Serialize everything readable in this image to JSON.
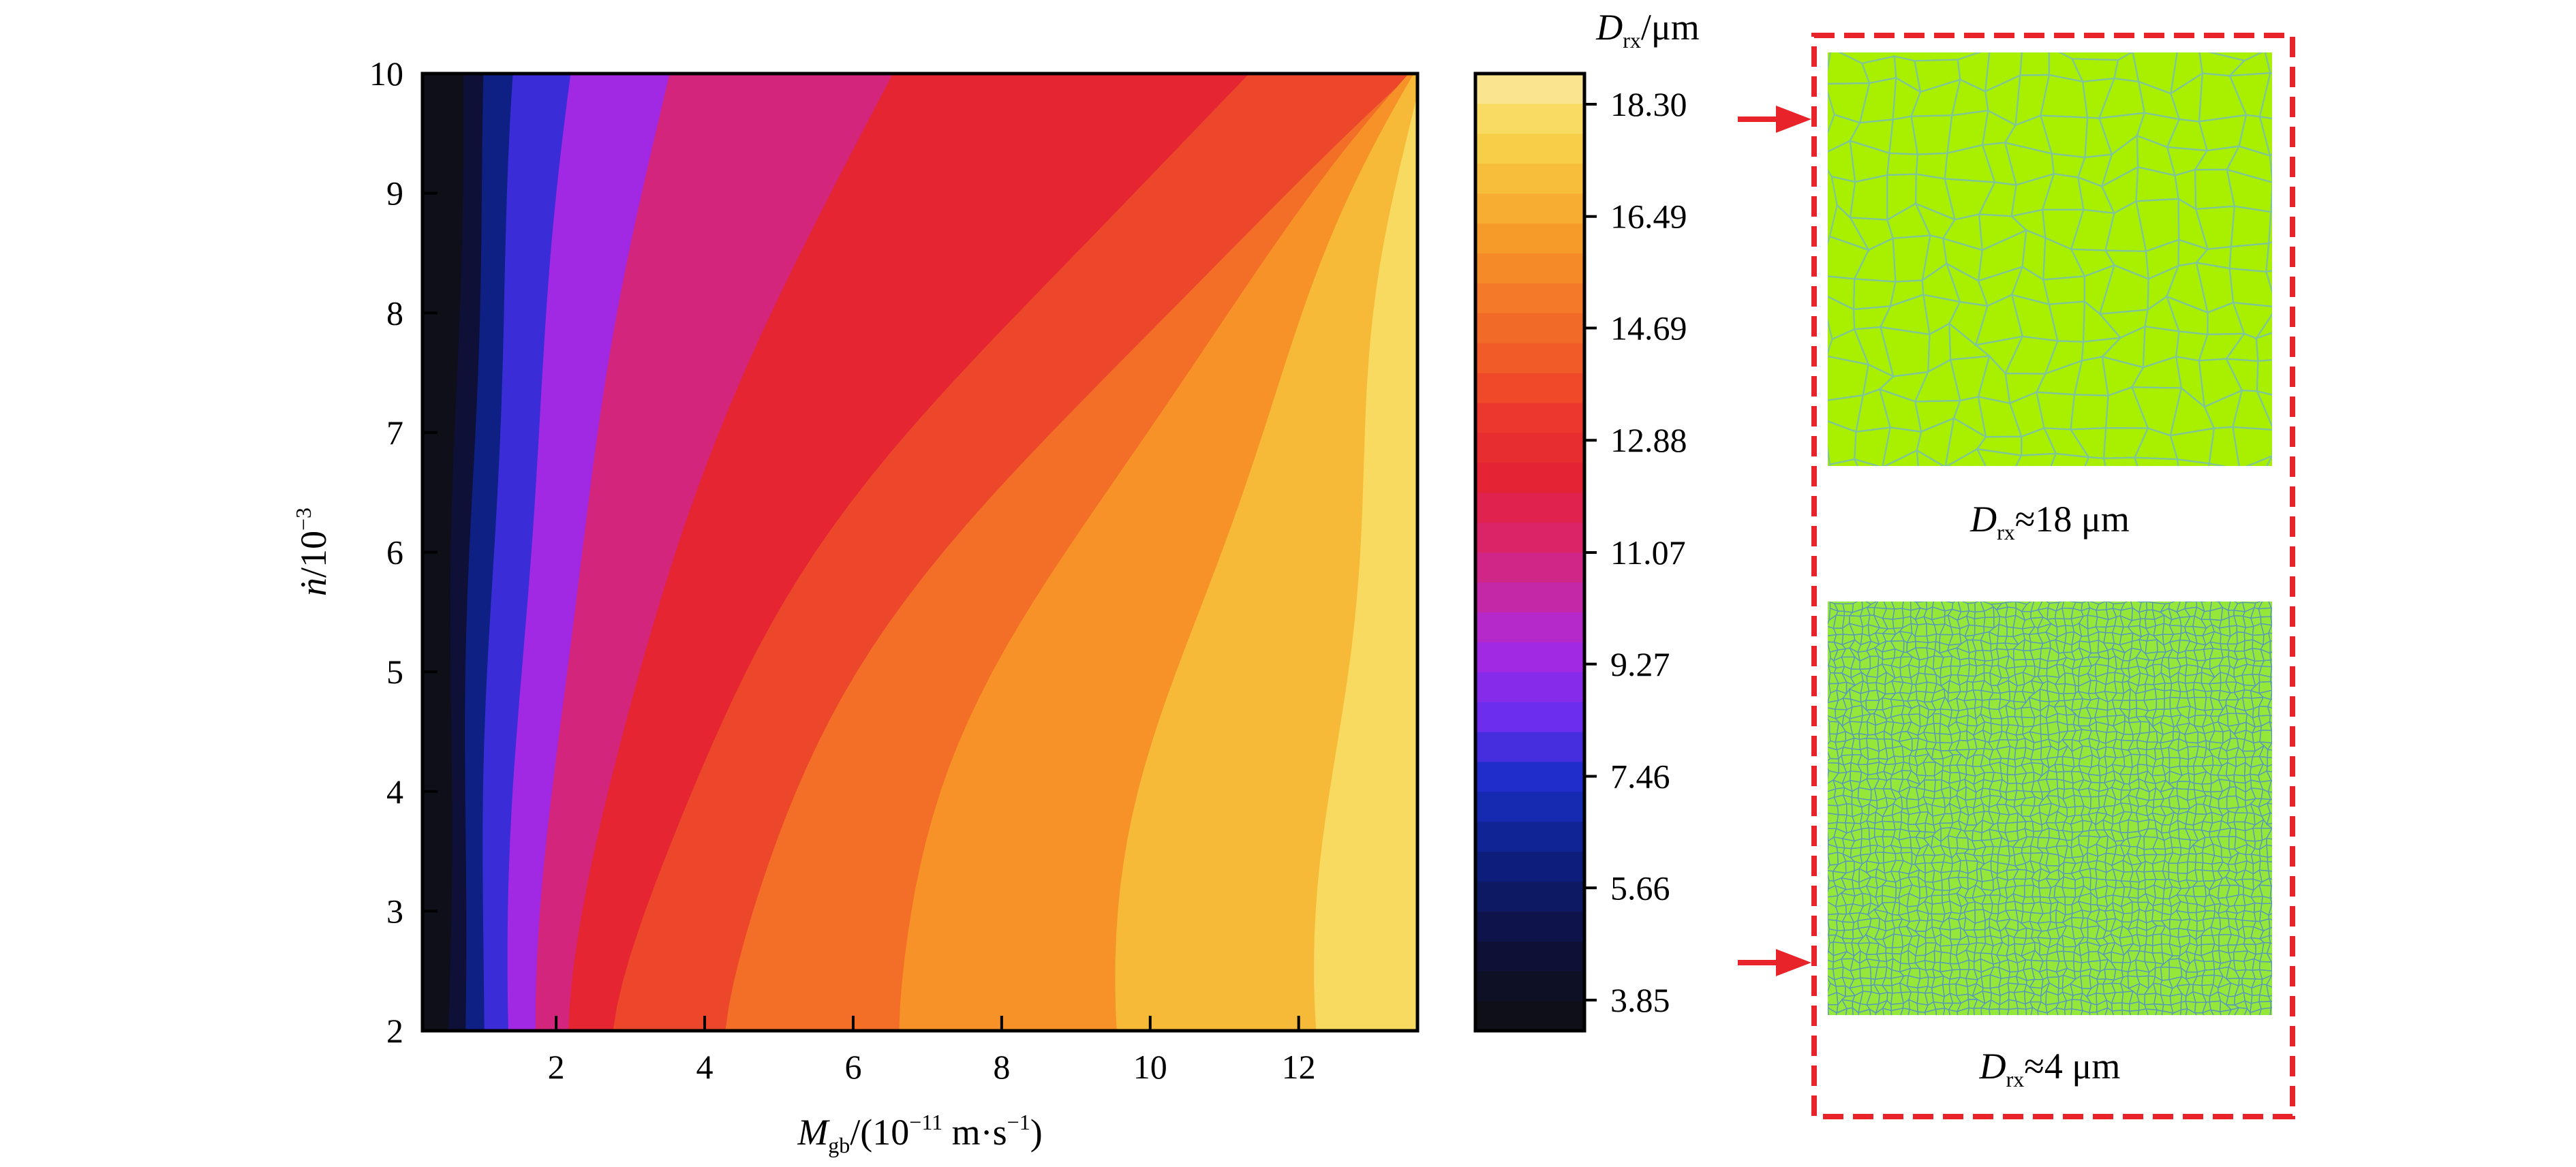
{
  "chart_data": [
    {
      "type": "heatmap",
      "title": "",
      "xlabel": {
        "main": "M",
        "sub": "gb",
        "rest": "/(10",
        "exp": "−11",
        "units": " m·s",
        "units_exp": "−1",
        "close": ")"
      },
      "ylabel": {
        "main": "ṅ",
        "rest": "/10",
        "exp": "−3"
      },
      "xlim": [
        0.2,
        13.6
      ],
      "ylim": [
        2,
        10
      ],
      "xticks": [
        2,
        4,
        6,
        8,
        10,
        12
      ],
      "yticks": [
        2,
        3,
        4,
        5,
        6,
        7,
        8,
        9,
        10
      ],
      "xtick_labels": [
        "2",
        "4",
        "6",
        "8",
        "10",
        "12"
      ],
      "ytick_labels": [
        "2",
        "3",
        "4",
        "5",
        "6",
        "7",
        "8",
        "9",
        "10"
      ],
      "z_description": "recrystallized grain size D_rx increasing with M_gb; iso-levels bend toward larger M_gb at higher nucleation rate",
      "iso_boundaries": [
        {
          "level": 5.0,
          "x_at_y2": 0.55,
          "x_at_y10": 0.75
        },
        {
          "level": 6.5,
          "x_at_y2": 0.75,
          "x_at_y10": 1.05
        },
        {
          "level": 8.0,
          "x_at_y2": 1.0,
          "x_at_y10": 1.45
        },
        {
          "level": 9.5,
          "x_at_y2": 1.35,
          "x_at_y10": 2.2
        },
        {
          "level": 11.0,
          "x_at_y2": 1.75,
          "x_at_y10": 3.5
        },
        {
          "level": 12.3,
          "x_at_y2": 2.2,
          "x_at_y10": 6.5
        },
        {
          "level": 13.5,
          "x_at_y2": 2.8,
          "x_at_y10": 11.3
        },
        {
          "level": 14.6,
          "x_at_y2": 4.2,
          "x_at_y10": 13.6
        },
        {
          "level": 15.6,
          "x_at_y2": 6.5,
          "x_at_y10": 13.6
        },
        {
          "level": 16.6,
          "x_at_y2": 9.5,
          "x_at_y10": 13.6
        },
        {
          "level": 17.6,
          "x_at_y2": 12.3,
          "x_at_y10": 13.6
        }
      ]
    },
    {
      "type": "colorbar",
      "label": {
        "main": "D",
        "sub": "rx",
        "rest": "/μm"
      },
      "range": [
        3.85,
        18.3
      ],
      "ticks": [
        3.85,
        5.66,
        7.46,
        9.27,
        11.07,
        12.88,
        14.69,
        16.49,
        18.3
      ],
      "tick_labels": [
        "3.85",
        "5.66",
        "7.46",
        "9.27",
        "11.07",
        "12.88",
        "14.69",
        "16.49",
        "18.30"
      ],
      "n_bands": 32,
      "colormap": "hot-like: black → navy → blue → violet → magenta → crimson → red → orange → yellow → pale yellow"
    }
  ],
  "grain_panels": [
    {
      "caption_main": "D",
      "caption_sub": "rx",
      "caption_rest": "≈18 μm",
      "points_to_y": 10,
      "grain_style": "coarse"
    },
    {
      "caption_main": "D",
      "caption_sub": "rx",
      "caption_rest": "≈4 μm",
      "points_to_y": 2,
      "grain_style": "fine"
    }
  ],
  "colors": {
    "annotation_red": "#e8242a",
    "grain_fill": "#a8f000",
    "grain_boundary": "#7fc59a",
    "fine_grain_fill": "#95e83a",
    "fine_grain_boundary": "#5a9ab5"
  }
}
